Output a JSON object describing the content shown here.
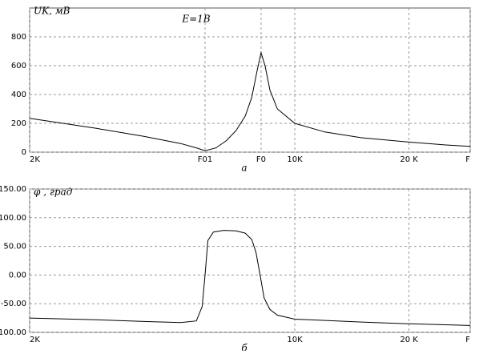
{
  "chart_data": [
    {
      "type": "line",
      "y_label": "UK, мВ",
      "annotation": "E=1B",
      "caption": "а",
      "log_x": true,
      "grid": true,
      "xlim": [
        2000,
        29000
      ],
      "ylim": [
        0,
        1000
      ],
      "xticks": [
        {
          "value": 2000,
          "label": "2K"
        },
        {
          "value": 5800,
          "label": "F01"
        },
        {
          "value": 8150,
          "label": "F0"
        },
        {
          "value": 10000,
          "label": "10K"
        },
        {
          "value": 20000,
          "label": "20 K"
        },
        {
          "value": 29000,
          "label": "F"
        }
      ],
      "yticks": [
        0,
        200,
        400,
        600,
        800
      ],
      "series": [
        {
          "color": "#000000",
          "x": [
            2000,
            3000,
            4000,
            5000,
            5500,
            5800,
            6200,
            6600,
            7000,
            7400,
            7700,
            7950,
            8150,
            8350,
            8600,
            9000,
            10000,
            12000,
            15000,
            20000,
            25000,
            29000
          ],
          "values": [
            235,
            165,
            110,
            60,
            30,
            10,
            30,
            80,
            150,
            250,
            380,
            560,
            690,
            600,
            430,
            300,
            200,
            140,
            100,
            70,
            50,
            40
          ]
        }
      ]
    },
    {
      "type": "line",
      "y_label": "φ , град",
      "caption": "б",
      "log_x": true,
      "grid": true,
      "xlim": [
        2000,
        29000
      ],
      "ylim": [
        -100,
        150
      ],
      "xticks": [
        {
          "value": 2000,
          "label": "2K"
        },
        {
          "value": 10000,
          "label": "10K"
        },
        {
          "value": 20000,
          "label": "20 K"
        },
        {
          "value": 29000,
          "label": "F"
        }
      ],
      "yticks": [
        {
          "value": -100,
          "label": "-100.00"
        },
        {
          "value": -50,
          "label": "-50.00"
        },
        {
          "value": 0,
          "label": "0.00"
        },
        {
          "value": 50,
          "label": "50.00"
        },
        {
          "value": 100,
          "label": "100.00"
        },
        {
          "value": 150,
          "label": "150.00"
        }
      ],
      "series": [
        {
          "color": "#000000",
          "x": [
            2000,
            3000,
            4000,
            5000,
            5500,
            5700,
            5800,
            5900,
            6100,
            6500,
            7000,
            7400,
            7700,
            7900,
            8100,
            8300,
            8600,
            9000,
            10000,
            15000,
            20000,
            29000
          ],
          "values": [
            -75,
            -78,
            -81,
            -83,
            -80,
            -55,
            0,
            60,
            75,
            78,
            77,
            73,
            62,
            40,
            0,
            -40,
            -60,
            -70,
            -77,
            -82,
            -85,
            -88
          ]
        }
      ]
    }
  ]
}
